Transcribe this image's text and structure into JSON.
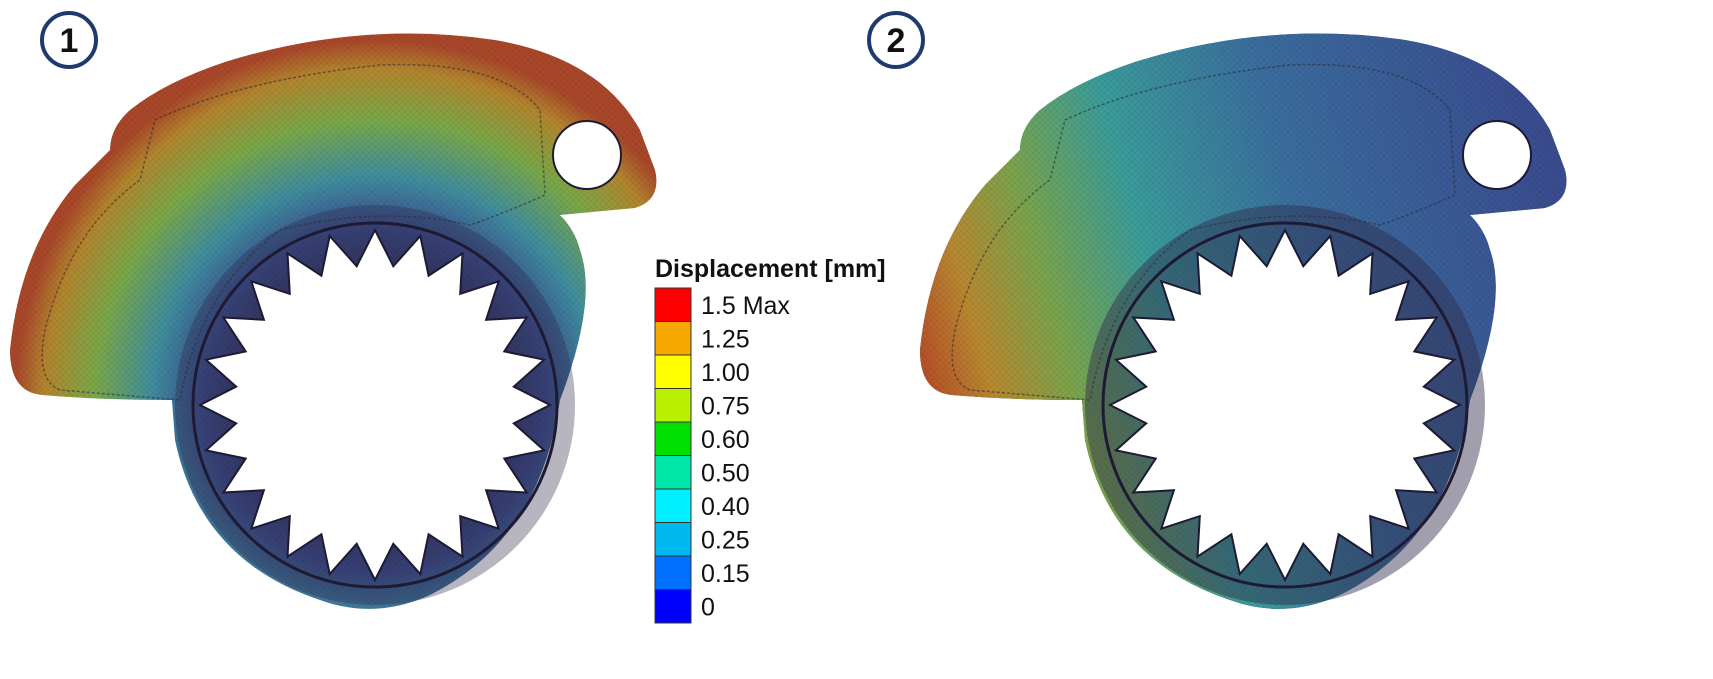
{
  "panels": [
    {
      "badge": "1"
    },
    {
      "badge": "2"
    }
  ],
  "legend": {
    "title": "Displacement [mm]",
    "bins": [
      {
        "label": "1.5 Max",
        "value": 1.5,
        "color": "#ff0000"
      },
      {
        "label": "1.25",
        "value": 1.25,
        "color": "#f5a800"
      },
      {
        "label": "1.00",
        "value": 1.0,
        "color": "#ffff00"
      },
      {
        "label": "0.75",
        "value": 0.75,
        "color": "#b8f000"
      },
      {
        "label": "0.60",
        "value": 0.6,
        "color": "#00e000"
      },
      {
        "label": "0.50",
        "value": 0.5,
        "color": "#00e8a8"
      },
      {
        "label": "0.40",
        "value": 0.4,
        "color": "#00f0ff"
      },
      {
        "label": "0.25",
        "value": 0.25,
        "color": "#00b8f0"
      },
      {
        "label": "0.15",
        "value": 0.15,
        "color": "#0070ff"
      },
      {
        "label": "0",
        "value": 0,
        "color": "#0000ff"
      }
    ]
  },
  "colors": {
    "badge_ring": "#1f3a6e",
    "part_hub": "#2e2a4a",
    "field_high_panel1": "#b4542a",
    "field_mid_panel1": "#8fa84a",
    "field_high_panel2": "#b4542a",
    "field_mid_panel2": "#2f9c9a",
    "field_low": "#3a4f8f"
  }
}
